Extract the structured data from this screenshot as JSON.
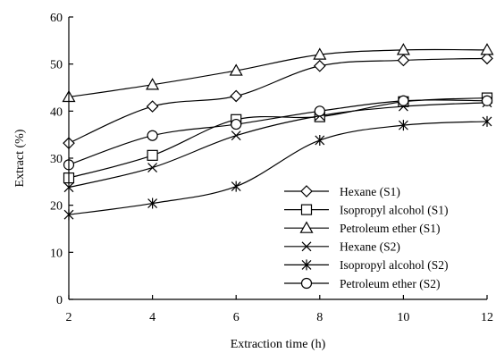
{
  "chart_data": {
    "type": "line",
    "xlabel": "Extraction time (h)",
    "ylabel": "Extract (%)",
    "xlim": [
      2,
      12
    ],
    "ylim": [
      0,
      60
    ],
    "xticks": [
      2,
      4,
      6,
      8,
      10,
      12
    ],
    "yticks": [
      0,
      10,
      20,
      30,
      40,
      50,
      60
    ],
    "grid": false,
    "legend_position": "bottom-right",
    "series": [
      {
        "name": "Hexane (S1)",
        "marker": "diamond-icon",
        "x": [
          2,
          4,
          6,
          8,
          10,
          12
        ],
        "y": [
          33.2,
          41.0,
          43.2,
          49.6,
          50.8,
          51.2
        ]
      },
      {
        "name": "Isopropyl alcohol (S1)",
        "marker": "square-icon",
        "x": [
          2,
          4,
          6,
          8,
          10,
          12
        ],
        "y": [
          25.8,
          30.6,
          38.2,
          38.8,
          42.0,
          42.8
        ]
      },
      {
        "name": "Petroleum ether (S1)",
        "marker": "triangle-icon",
        "x": [
          2,
          4,
          6,
          8,
          10,
          12
        ],
        "y": [
          43.0,
          45.6,
          48.6,
          52.0,
          53.0,
          53.0
        ]
      },
      {
        "name": "Hexane (S2)",
        "marker": "x-icon",
        "x": [
          2,
          4,
          6,
          8,
          10,
          12
        ],
        "y": [
          23.8,
          28.0,
          34.8,
          39.0,
          41.0,
          41.8
        ]
      },
      {
        "name": "Isopropyl alcohol (S2)",
        "marker": "asterisk-icon",
        "x": [
          2,
          4,
          6,
          8,
          10,
          12
        ],
        "y": [
          18.0,
          20.4,
          24.0,
          33.8,
          37.0,
          37.8
        ]
      },
      {
        "name": "Petroleum ether (S2)",
        "marker": "circle-icon",
        "x": [
          2,
          4,
          6,
          8,
          10,
          12
        ],
        "y": [
          28.6,
          34.8,
          37.2,
          40.0,
          42.2,
          42.2
        ]
      }
    ]
  }
}
